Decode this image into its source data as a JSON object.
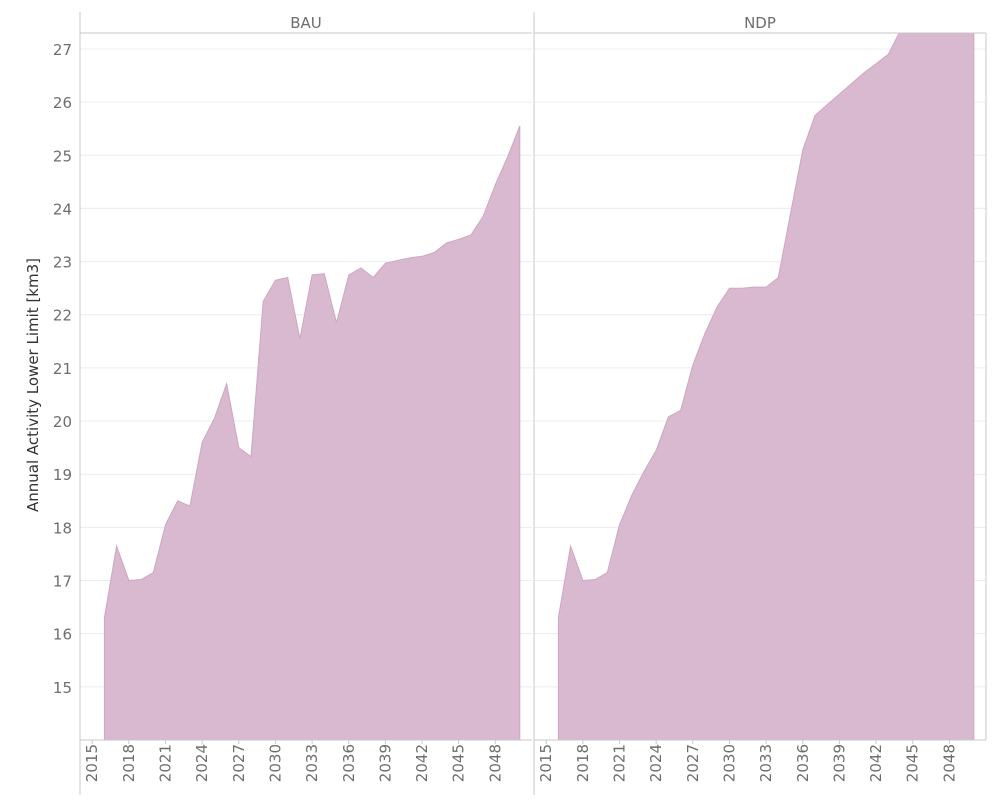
{
  "chart_data": {
    "type": "area",
    "ylabel": "Annual Activity Lower Limit [km3]",
    "xlabel": "",
    "xlim": [
      2014,
      2051
    ],
    "ylim": [
      14.0,
      27.3
    ],
    "x_ticks": [
      2015,
      2018,
      2021,
      2024,
      2027,
      2030,
      2033,
      2036,
      2039,
      2042,
      2045,
      2048
    ],
    "y_ticks": [
      15,
      16,
      17,
      18,
      19,
      20,
      21,
      22,
      23,
      24,
      25,
      26,
      27
    ],
    "grid": true,
    "colors": {
      "area": "#d8b9cf",
      "line": "#cda7c2",
      "grid": "#ececec",
      "axis": "#c8c8c8",
      "text": "#6e6e6e"
    },
    "panels": [
      {
        "title": "BAU",
        "x": [
          2016,
          2017,
          2018,
          2019,
          2020,
          2021,
          2022,
          2023,
          2024,
          2025,
          2026,
          2027,
          2028,
          2029,
          2030,
          2031,
          2032,
          2033,
          2034,
          2035,
          2036,
          2037,
          2038,
          2039,
          2040,
          2041,
          2042,
          2043,
          2044,
          2045,
          2046,
          2047,
          2048,
          2049,
          2050
        ],
        "values": [
          16.3,
          17.65,
          17.0,
          17.02,
          17.15,
          18.05,
          18.5,
          18.4,
          19.6,
          20.05,
          20.7,
          19.5,
          19.33,
          22.25,
          22.65,
          22.7,
          21.55,
          22.75,
          22.77,
          21.85,
          22.75,
          22.88,
          22.7,
          22.97,
          23.02,
          23.07,
          23.1,
          23.17,
          23.35,
          23.42,
          23.5,
          23.85,
          24.45,
          24.97,
          25.55
        ]
      },
      {
        "title": "NDP",
        "x": [
          2016,
          2017,
          2018,
          2019,
          2020,
          2021,
          2022,
          2023,
          2024,
          2025,
          2026,
          2027,
          2028,
          2029,
          2030,
          2031,
          2032,
          2033,
          2034,
          2035,
          2036,
          2037,
          2038,
          2039,
          2040,
          2041,
          2042,
          2043,
          2044,
          2045,
          2046,
          2047,
          2048,
          2049,
          2050
        ],
        "values": [
          16.3,
          17.65,
          17.0,
          17.02,
          17.15,
          18.05,
          18.6,
          19.05,
          19.45,
          20.08,
          20.2,
          21.05,
          21.65,
          22.15,
          22.5,
          22.5,
          22.52,
          22.52,
          22.7,
          23.9,
          25.1,
          25.75,
          25.95,
          26.15,
          26.35,
          26.55,
          26.72,
          26.9,
          27.35,
          27.6,
          27.7,
          27.75,
          27.8,
          27.85,
          27.9
        ]
      }
    ]
  }
}
